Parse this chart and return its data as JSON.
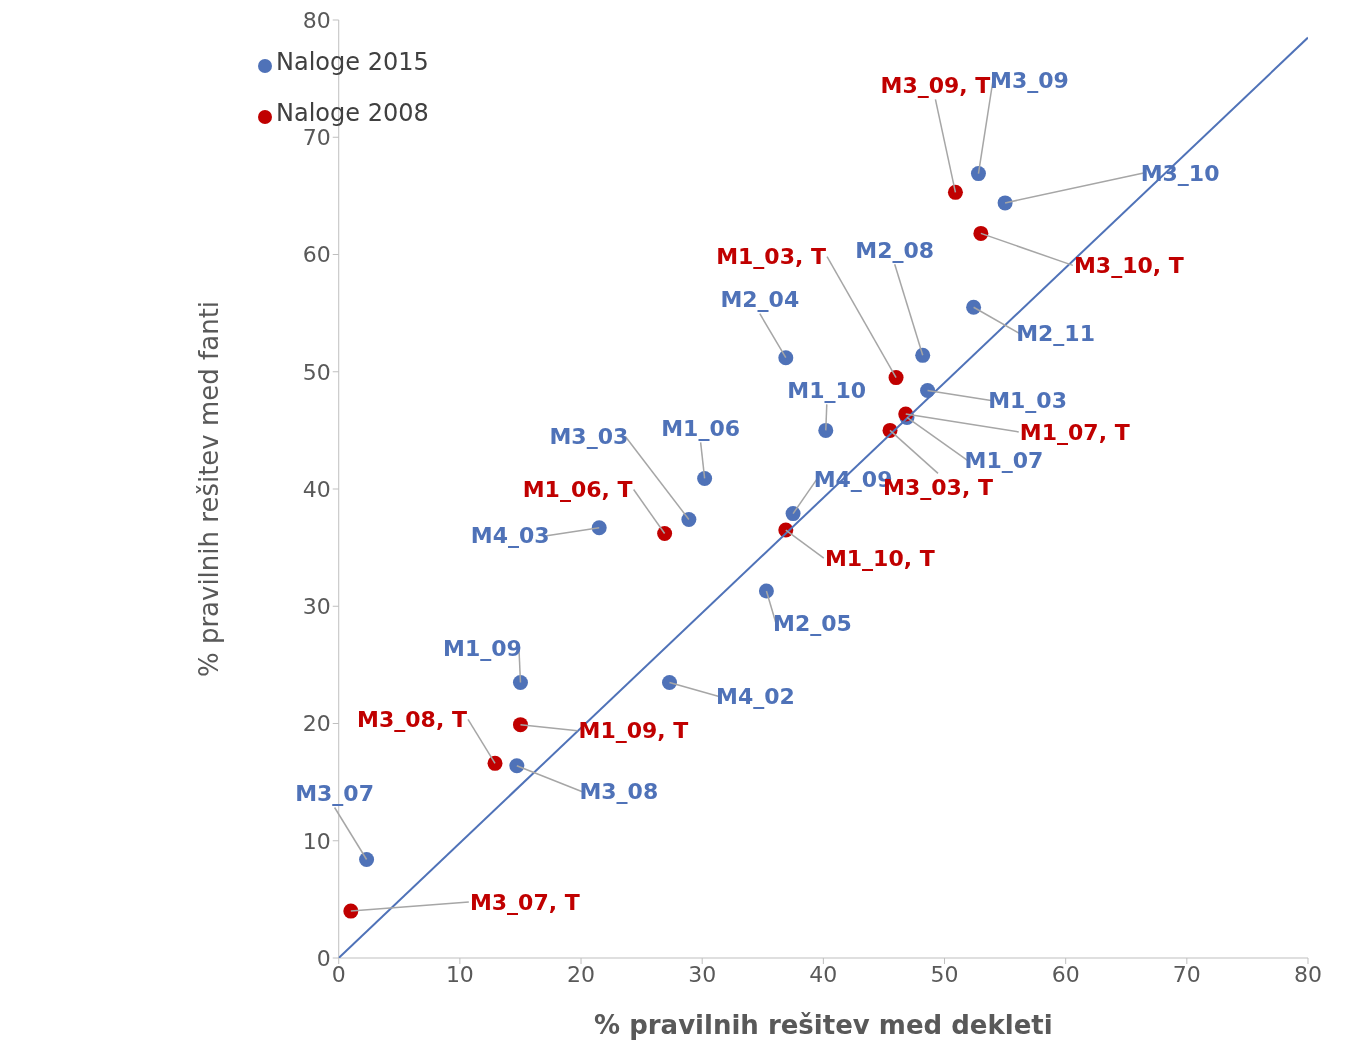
{
  "chart_data": {
    "type": "scatter",
    "xlabel": "% pravilnih rešitev med dekleti",
    "ylabel": "% pravilnih rešitev med fanti",
    "xlim": [
      0,
      80
    ],
    "xticks": [
      0,
      10,
      20,
      30,
      40,
      50,
      60,
      70,
      80
    ],
    "ylim": [
      0,
      80
    ],
    "yticks": [
      0,
      10,
      20,
      30,
      40,
      50,
      60,
      70,
      80
    ],
    "grid": false,
    "legend": "top left",
    "marker": "circle",
    "series": [
      {
        "name": "Naloge 2015",
        "color": "#4f72b8",
        "x": [
          52.8,
          55.0,
          48.2,
          52.4,
          36.9,
          48.6,
          40.2,
          46.9,
          30.2,
          28.9,
          37.5,
          21.5,
          35.3,
          15.0,
          27.3,
          14.7,
          2.3
        ],
        "values": [
          66.9,
          64.4,
          51.4,
          55.5,
          51.2,
          48.4,
          45.0,
          46.1,
          40.9,
          37.4,
          37.9,
          36.7,
          31.3,
          23.5,
          23.5,
          16.4,
          8.4
        ],
        "value_labels": [
          "M3_09",
          "M3_10",
          "M2_08",
          "M2_11",
          "M2_04",
          "M1_03",
          "M1_10",
          "M1_07",
          "M1_06",
          "M3_03",
          "M4_09",
          "M4_03",
          "M2_05",
          "M1_09",
          "M4_02",
          "M3_08",
          "M3_07"
        ]
      },
      {
        "name": "Naloge 2008",
        "color": "#c00000",
        "x": [
          50.9,
          53.0,
          46.0,
          46.8,
          45.5,
          26.9,
          36.9,
          15.0,
          12.9,
          1.0
        ],
        "values": [
          65.3,
          61.8,
          49.5,
          46.4,
          45.0,
          36.2,
          36.5,
          19.9,
          16.6,
          4.0
        ],
        "value_labels": [
          "M3_09, T",
          "M3_10, T",
          "M1_03, T",
          "M1_07, T",
          "M3_03, T",
          "M1_06, T",
          "M1_10, T",
          "M1_09, T",
          "M3_08, T",
          "M3_07, T"
        ]
      },
      {
        "type": "line",
        "color": "#4f72b8",
        "x": [
          0,
          80
        ],
        "values": [
          0,
          78.5
        ],
        "marker": "none"
      }
    ]
  }
}
